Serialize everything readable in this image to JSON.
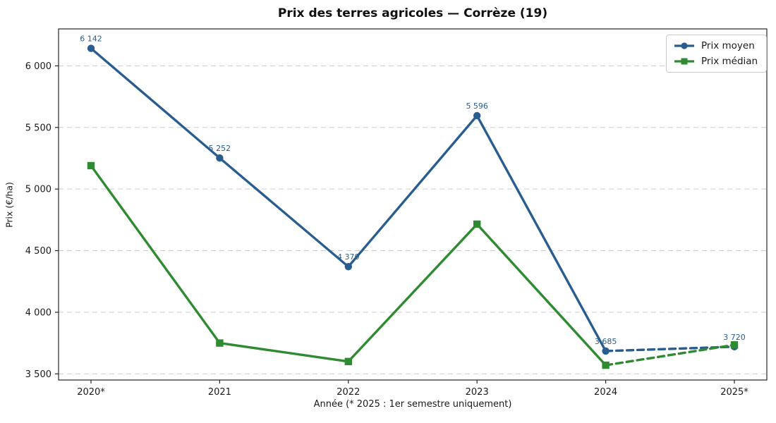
{
  "chart_data": {
    "type": "line",
    "title": "Prix des terres agricoles — Corrèze (19)",
    "xlabel": "Année (* 2025 : 1er semestre uniquement)",
    "ylabel": "Prix (€/ha)",
    "categories": [
      "2020*",
      "2021",
      "2022",
      "2023",
      "2024",
      "2025*"
    ],
    "series": [
      {
        "name": "Prix moyen",
        "color": "#2a5d8f",
        "marker": "circle",
        "values": [
          6142,
          5252,
          4370,
          5596,
          3685,
          3720
        ],
        "point_labels": [
          "6 142",
          "5 252",
          "4 370",
          "5 596",
          "3 685",
          "3 720"
        ],
        "dashed_last_segment": true
      },
      {
        "name": "Prix médian",
        "color": "#2f8b31",
        "marker": "square",
        "values": [
          5190,
          3750,
          3600,
          4715,
          3570,
          3735
        ],
        "point_labels": null,
        "dashed_last_segment": true
      }
    ],
    "ylim": [
      3450,
      6300
    ],
    "yticks": [
      3500,
      4000,
      4500,
      5000,
      5500,
      6000
    ],
    "ytick_labels": [
      "3 500",
      "4 000",
      "4 500",
      "5 000",
      "5 500",
      "6 000"
    ],
    "grid": "horizontal-dashed",
    "grid_color": "#cccccc",
    "spine_color": "#262626",
    "tick_text_color": "#1a1a1a",
    "legend_position": "top-right"
  }
}
